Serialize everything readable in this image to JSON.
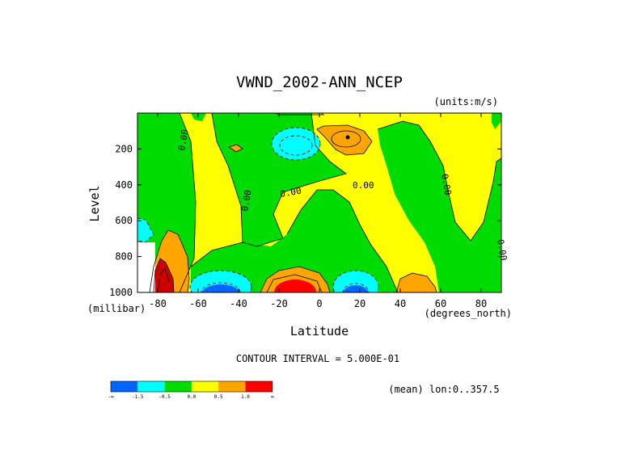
{
  "chart_data": {
    "type": "contour",
    "title": "VWND_2002-ANN_NCEP",
    "units": "(units:m/s)",
    "xlabel": "Latitude",
    "xunit": "(degrees_north)",
    "ylabel": "Level",
    "yunit": "(millibar)",
    "xlim": [
      -90,
      90
    ],
    "ylim": [
      1000,
      0
    ],
    "xticks": [
      -80,
      -60,
      -40,
      -20,
      0,
      20,
      40,
      60,
      80
    ],
    "yticks": [
      200,
      400,
      600,
      800,
      1000
    ],
    "contour_interval_text": "CONTOUR INTERVAL = 5.000E-01",
    "mean_text": "(mean) lon:0..357.5",
    "contour_labels": [
      "0.00",
      "0.00",
      "0.00",
      "0.00",
      "0.00",
      "0.00"
    ],
    "colorbar": {
      "labels": [
        "-∞",
        "-1.5",
        "-0.5",
        "0.0",
        "0.5",
        "1.0",
        "∞"
      ],
      "colors": [
        "#0064ff",
        "#00ffff",
        "#00dc00",
        "#ffff00",
        "#ffa500",
        "#ff0000"
      ]
    },
    "features": [
      {
        "kind": "negative",
        "lat": -50,
        "level": 970,
        "value": -1.0
      },
      {
        "kind": "negative",
        "lat": 12,
        "level": 970,
        "value": -1.0
      },
      {
        "kind": "negative",
        "lat": -10,
        "level": 170,
        "value": -1.0
      },
      {
        "kind": "positive",
        "lat": -15,
        "level": 960,
        "value": 1.0
      },
      {
        "kind": "positive",
        "lat": 15,
        "level": 150,
        "value": 1.0
      },
      {
        "kind": "positive",
        "lat": 50,
        "level": 970,
        "value": 0.5
      },
      {
        "kind": "positive",
        "lat": -80,
        "level": 950,
        "value": 1.5
      }
    ]
  }
}
